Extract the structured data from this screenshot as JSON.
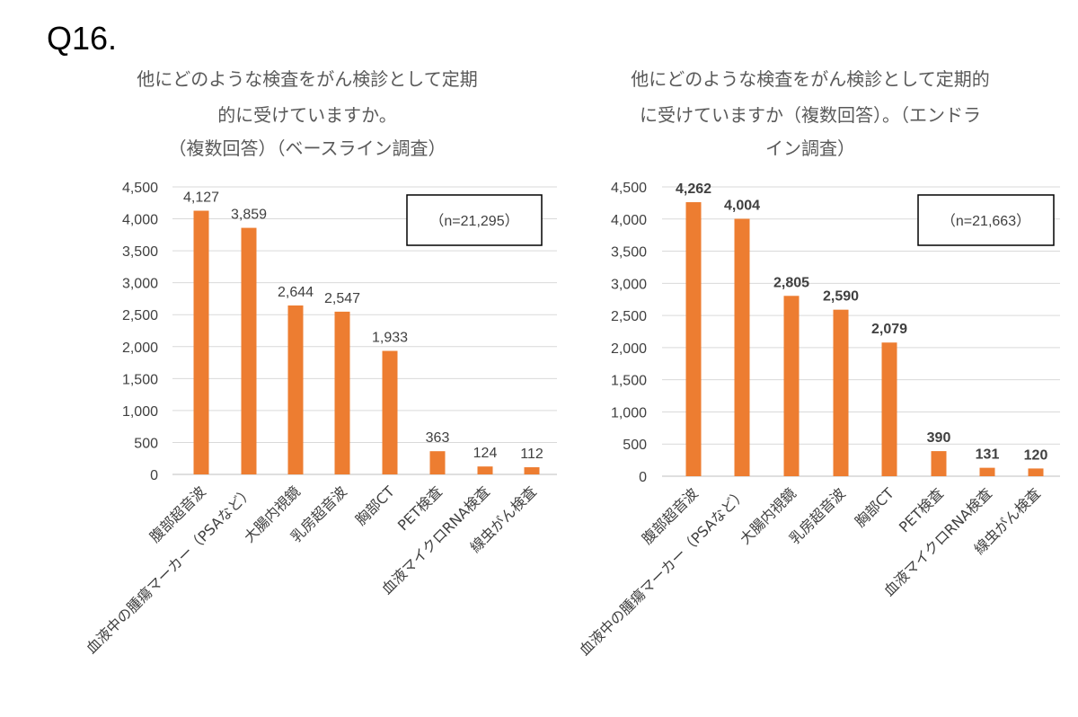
{
  "question": "Q16.",
  "chart_data": [
    {
      "type": "bar",
      "title_lines": [
        "他にどのような検査をがん検診として定期",
        "的に受けていますか。",
        "（複数回答）（ベースライン調査）"
      ],
      "annotation": "（n=21,295）",
      "categories": [
        "腹部超音波",
        "血液中の腫瘍マーカー（PSAなど）",
        "大腸内視鏡",
        "乳房超音波",
        "胸部CT",
        "PET検査",
        "血液マイクロRNA検査",
        "線虫がん検査"
      ],
      "values": [
        4127,
        3859,
        2644,
        2547,
        1933,
        363,
        124,
        112
      ],
      "data_labels": [
        "4,127",
        "3,859",
        "2,644",
        "2,547",
        "1,933",
        "363",
        "124",
        "112"
      ],
      "yticks": [
        "0",
        "500",
        "1,000",
        "1,500",
        "2,000",
        "2,500",
        "3,000",
        "3,500",
        "4,000",
        "4,500"
      ],
      "ylim": [
        0,
        4500
      ],
      "grid": true,
      "bar_color": "#ED7D31",
      "bold_labels": false
    },
    {
      "type": "bar",
      "title_lines": [
        "他にどのような検査をがん検診として定期的",
        "に受けていますか（複数回答）。（エンドラ",
        "イン調査）"
      ],
      "annotation": "（n=21,663）",
      "categories": [
        "腹部超音波",
        "血液中の腫瘍マーカー（PSAなど）",
        "大腸内視鏡",
        "乳房超音波",
        "胸部CT",
        "PET検査",
        "血液マイクロRNA検査",
        "線虫がん検査"
      ],
      "values": [
        4262,
        4004,
        2805,
        2590,
        2079,
        390,
        131,
        120
      ],
      "data_labels": [
        "4,262",
        "4,004",
        "2,805",
        "2,590",
        "2,079",
        "390",
        "131",
        "120"
      ],
      "yticks": [
        "0",
        "500",
        "1,000",
        "1,500",
        "2,000",
        "2,500",
        "3,000",
        "3,500",
        "4,000",
        "4,500"
      ],
      "ylim": [
        0,
        4500
      ],
      "grid": true,
      "bar_color": "#ED7D31",
      "bold_labels": true
    }
  ]
}
